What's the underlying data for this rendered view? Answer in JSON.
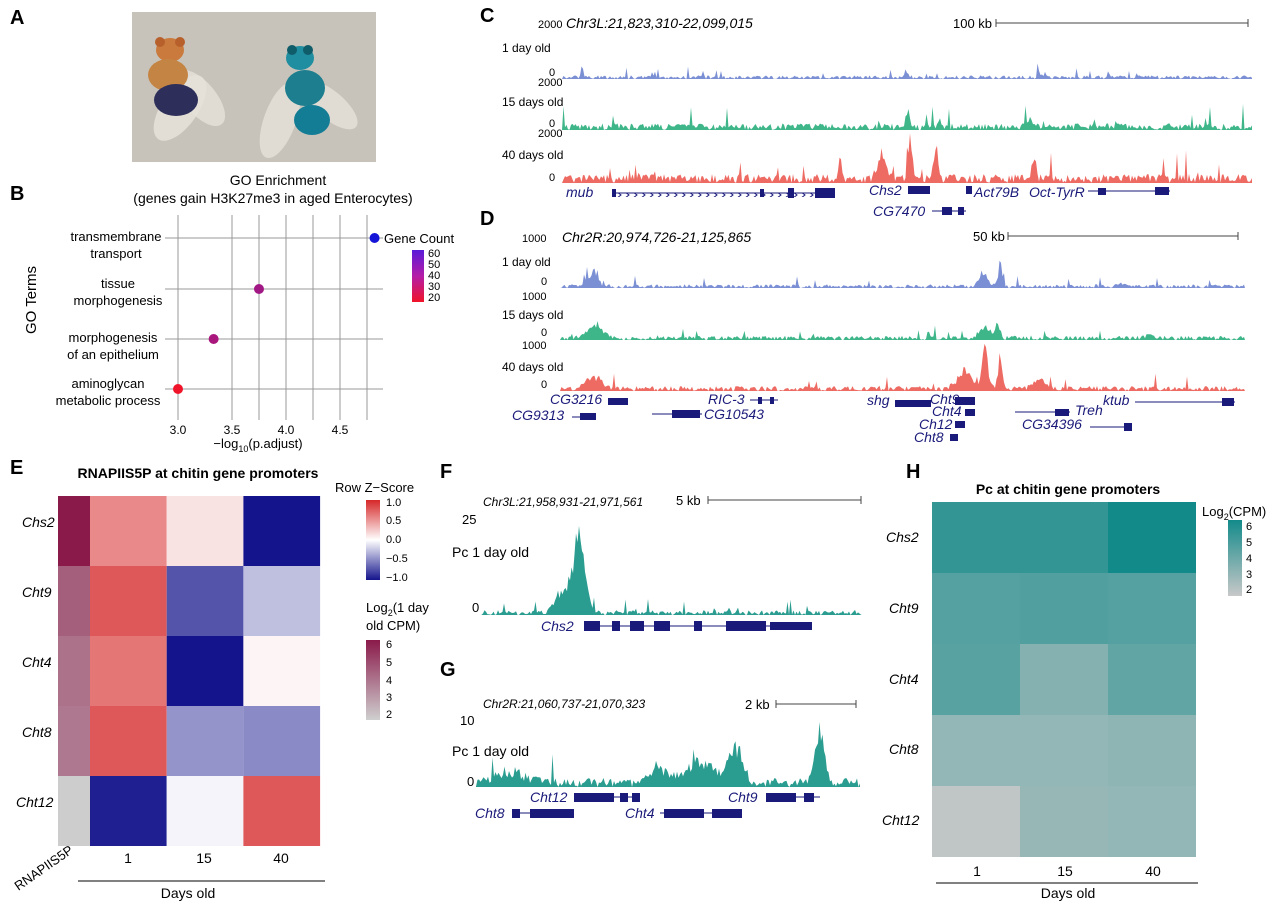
{
  "panel_labels": [
    "A",
    "B",
    "C",
    "D",
    "E",
    "F",
    "G",
    "H"
  ],
  "colors": {
    "track_blue": "#7b8fd4",
    "track_green": "#3fb68a",
    "track_red": "#ee6b64",
    "track_teal": "#2a9d90",
    "gene_navy": "#1a1a7a",
    "heat_red": "#d62728",
    "heat_navy": "#14148c",
    "pc_teal": "#138a8a"
  },
  "panelA": {
    "photo": "two-flies-photo"
  },
  "panelB": {
    "title_line1": "GO Enrichment",
    "title_line2": "(genes gain H3K27me3 in aged Enterocytes)",
    "ylabel": "GO Terms",
    "xlabel": "−log",
    "xlabel_sub": "10",
    "xlabel_rest": "(p.adjust)",
    "terms": [
      {
        "line1": "transmembrane",
        "line2": "transport"
      },
      {
        "line1": "tissue",
        "line2": "morphogenesis"
      },
      {
        "line1": "morphogenesis",
        "line2": "of an epithelium"
      },
      {
        "line1": "aminoglycan",
        "line2": "metabolic process"
      }
    ],
    "legend_title": "Gene Count",
    "legend_ticks": [
      "60",
      "50",
      "40",
      "30",
      "20"
    ]
  },
  "chart_data": [
    {
      "type": "scatter",
      "title": "GO Enrichment (genes gain H3K27me3 in aged Enterocytes)",
      "xlabel": "−log10(p.adjust)",
      "ylabel": "GO Terms",
      "categories": [
        "transmembrane transport",
        "tissue morphogenesis",
        "morphogenesis of an epithelium",
        "aminoglycan metabolic process"
      ],
      "x": [
        4.82,
        3.75,
        3.33,
        3.0
      ],
      "gene_count": [
        62,
        42,
        40,
        20
      ],
      "xlim": [
        2.95,
        4.9
      ],
      "xticks": [
        "3.0",
        "3.5",
        "4.0",
        "4.5"
      ],
      "legend": "right",
      "grid": true
    },
    {
      "type": "heatmap",
      "title": "RNAPIIS5P at chitin gene promoters",
      "rows": [
        "Chs2",
        "Cht9",
        "Cht4",
        "Cht8",
        "Cht12"
      ],
      "columns": [
        "1",
        "15",
        "40"
      ],
      "xlabel": "Days old",
      "row_annotation_label": "RNAPIIS5P",
      "z_scores": [
        [
          0.6,
          0.15,
          -1.1
        ],
        [
          0.85,
          -0.8,
          -0.3
        ],
        [
          0.7,
          -1.15,
          0.05
        ],
        [
          0.85,
          -0.5,
          -0.55
        ],
        [
          -1.05,
          -0.05,
          0.85
        ]
      ],
      "log2_1day_cpm": [
        6.6,
        4.8,
        4.3,
        4.1,
        1.9
      ],
      "legend1_title": "Row Z−Score",
      "legend1_ticks": [
        "1.0",
        "0.5",
        "0.0",
        "−0.5",
        "−1.0"
      ],
      "legend2_title_line1": "Log",
      "legend2_sub": "2",
      "legend2_title_rest": "(1 day",
      "legend2_title_line2": "old CPM)",
      "legend2_ticks": [
        "6",
        "5",
        "4",
        "3",
        "2"
      ]
    },
    {
      "type": "heatmap",
      "title": "Pc at chitin gene promoters",
      "rows": [
        "Chs2",
        "Cht9",
        "Cht4",
        "Cht8",
        "Cht12"
      ],
      "columns": [
        "1",
        "15",
        "40"
      ],
      "xlabel": "Days old",
      "log2_cpm": [
        [
          5.6,
          5.6,
          6.4
        ],
        [
          4.8,
          4.9,
          4.8
        ],
        [
          4.7,
          3.6,
          4.5
        ],
        [
          3.3,
          3.3,
          3.4
        ],
        [
          2.2,
          3.2,
          3.3
        ]
      ],
      "legend_title": "Log",
      "legend_sub": "2",
      "legend_rest": "(CPM)",
      "legend_ticks": [
        "6",
        "5",
        "4",
        "3",
        "2"
      ]
    }
  ],
  "panelC": {
    "locus": "Chr3L:21,823,310-22,099,015",
    "scale_label": "100 kb",
    "ymax": "2000",
    "ymin": "0",
    "tracks": [
      "1 day old",
      "15 days old",
      "40 days old"
    ],
    "genes": [
      "mub",
      "Chs2",
      "Act79B",
      "Oct-TyrR",
      "CG7470"
    ]
  },
  "panelD": {
    "locus": "Chr2R:20,974,726-21,125,865",
    "scale_label": "50 kb",
    "ymax": "1000",
    "ymin": "0",
    "tracks": [
      "1 day old",
      "15 days old",
      "40 days old"
    ],
    "genes": [
      "CG3216",
      "RIC-3",
      "shg",
      "Cht9",
      "ktub",
      "CG9313",
      "CG10543",
      "Cht4",
      "Treh",
      "Ch12",
      "CG34396",
      "Cht8"
    ]
  },
  "panelF": {
    "locus": "Chr3L:21,958,931-21,971,561",
    "scale_label": "5 kb",
    "ymax": "25",
    "ymin": "0",
    "track": "Pc 1 day old",
    "gene": "Chs2"
  },
  "panelG": {
    "locus": "Chr2R:21,060,737-21,070,323",
    "scale_label": "2 kb",
    "ymax": "10",
    "ymin": "0",
    "track": "Pc 1 day old",
    "genes": [
      "Cht12",
      "Cht9",
      "Cht8",
      "Cht4"
    ]
  }
}
